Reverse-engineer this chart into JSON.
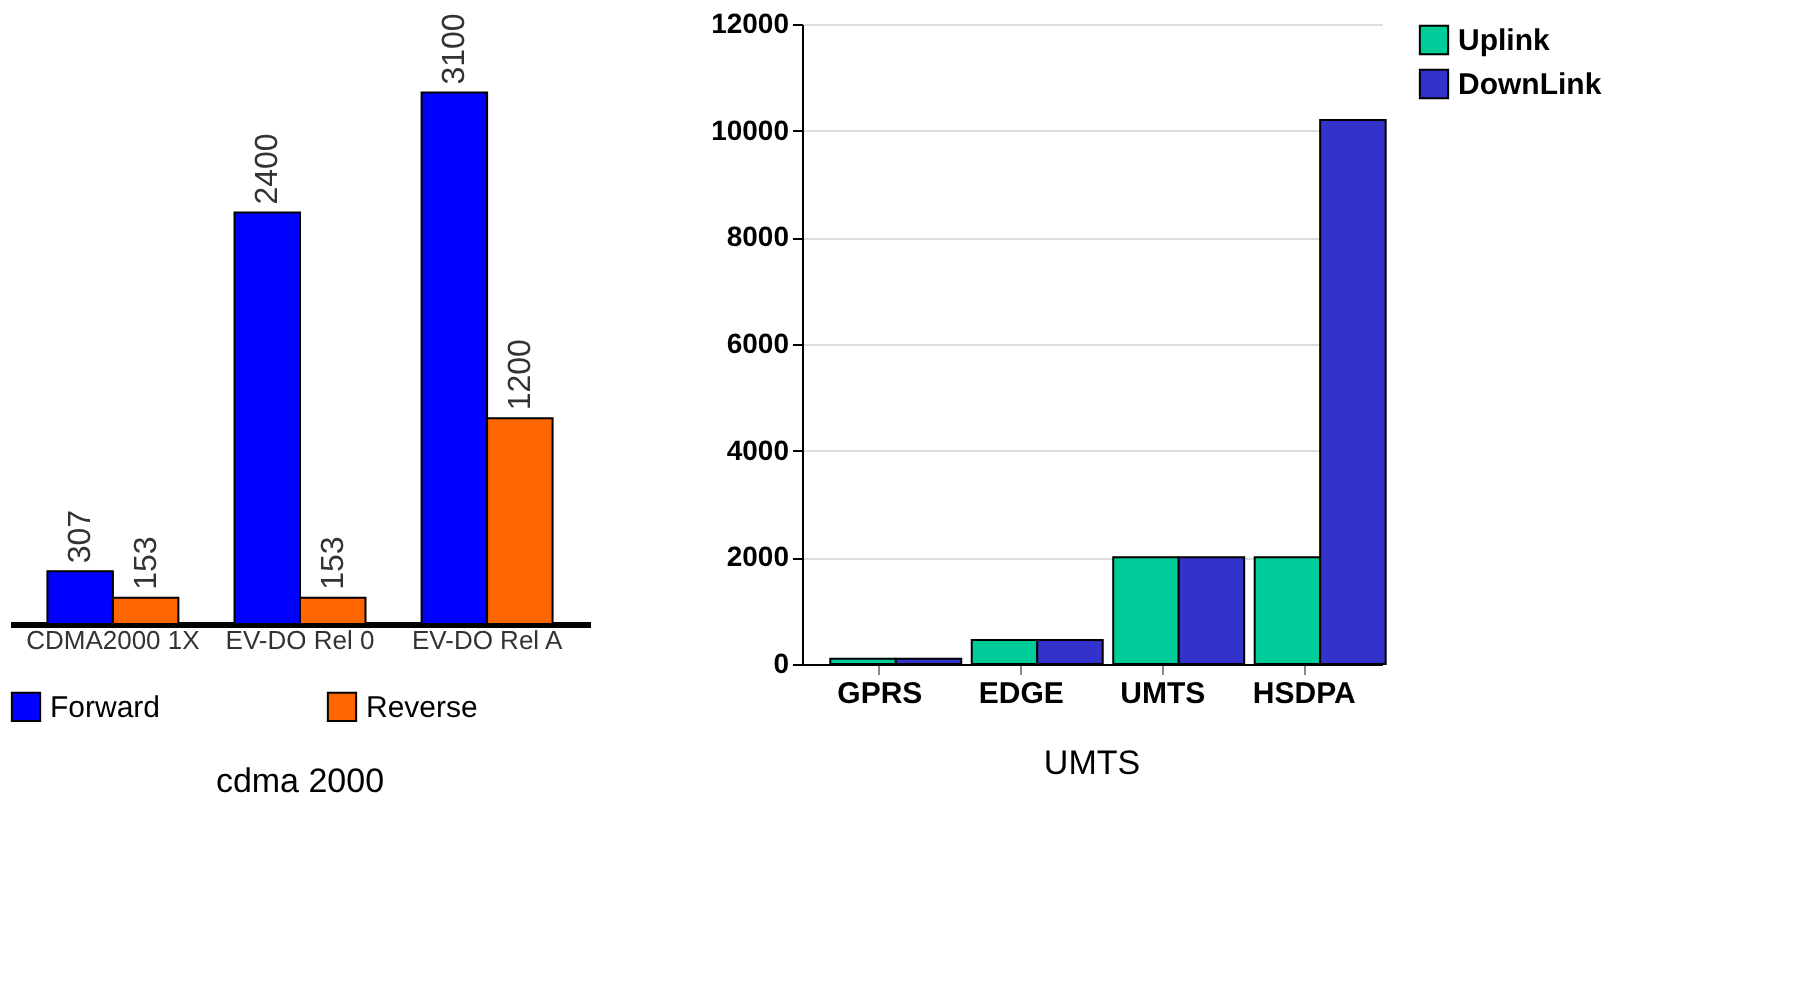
{
  "chart_data": [
    {
      "type": "bar",
      "title": "cdma 2000",
      "categories": [
        "CDMA2000 1X",
        "EV-DO Rel 0",
        "EV-DO Rel A"
      ],
      "tick_labels": "x",
      "data_labels": true,
      "legend": "bottom",
      "grid": false,
      "series": [
        {
          "name": "Forward",
          "color": "#0000ff",
          "values": [
            307,
            2400,
            3100
          ]
        },
        {
          "name": "Reverse",
          "color": "#ff6600",
          "values": [
            153,
            153,
            1200
          ]
        }
      ]
    },
    {
      "type": "bar",
      "title": "UMTS",
      "categories": [
        "GPRS",
        "EDGE",
        "UMTS",
        "HSDPA"
      ],
      "ylim": [
        0,
        12000
      ],
      "yticks": [
        0,
        2000,
        4000,
        6000,
        8000,
        10000,
        12000
      ],
      "grid": "y",
      "legend": "right",
      "series": [
        {
          "name": "Uplink",
          "color": "#00cc99",
          "values": [
            100,
            450,
            2000,
            2000
          ]
        },
        {
          "name": "DownLink",
          "color": "#3333cc",
          "values": [
            100,
            450,
            2000,
            10200
          ]
        }
      ]
    }
  ]
}
